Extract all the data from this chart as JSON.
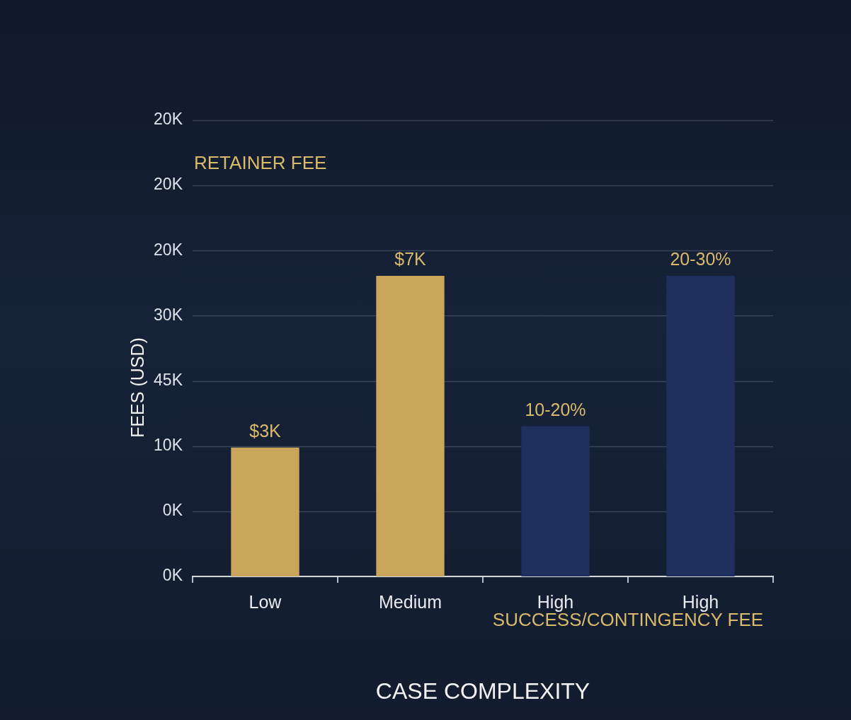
{
  "chart_data": {
    "type": "bar",
    "xlabel": "CASE COMPLEXITY",
    "ylabel": "FEES (USD)",
    "categories": [
      "Low",
      "Medium",
      "High",
      "High"
    ],
    "series": [
      {
        "color": "#c9a65c",
        "values": [
          3000,
          7000,
          null,
          null
        ],
        "value_labels": [
          "$3K",
          "$7K",
          null,
          null
        ]
      },
      {
        "color": "#1f305e",
        "axis": "y2",
        "values": [
          null,
          null,
          10,
          20
        ],
        "value_labels": [
          null,
          null,
          "10-20%",
          "20-30%"
        ]
      }
    ],
    "grid": "y",
    "annotations": [
      "RETAINER FEE",
      "SUCCESS/CONTINGENCY FEE",
      "20K",
      "20K",
      "20K",
      "30K",
      "45K",
      "10K",
      "0K",
      "0K"
    ]
  }
}
